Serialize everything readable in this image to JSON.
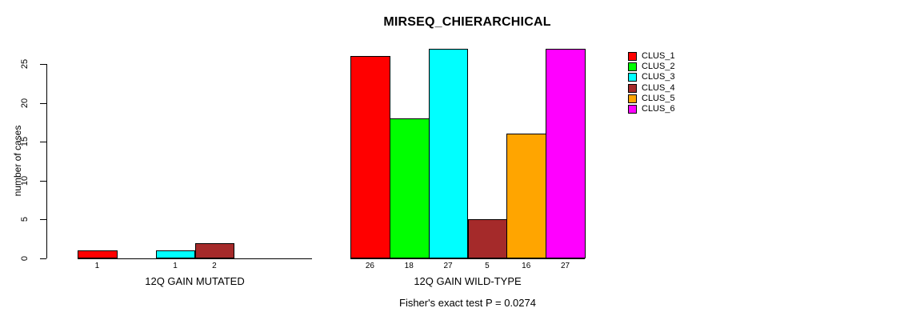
{
  "chart_data": {
    "type": "bar",
    "title": "MIRSEQ_CHIERARCHICAL",
    "subtitle": "Fisher's exact test P = 0.0274",
    "ylabel": "number of cases",
    "xlabel": "",
    "ylim": [
      0,
      27.5
    ],
    "yticks": [
      0,
      5,
      10,
      15,
      20,
      25
    ],
    "grid": false,
    "legend_position": "top-right",
    "categories": [
      "12Q GAIN MUTATED",
      "12Q GAIN WILD-TYPE"
    ],
    "series": [
      {
        "name": "CLUS_1",
        "color": "#FF0000",
        "values": [
          1,
          26
        ]
      },
      {
        "name": "CLUS_2",
        "color": "#00FF00",
        "values": [
          0,
          18
        ]
      },
      {
        "name": "CLUS_3",
        "color": "#00FFFF",
        "values": [
          1,
          27
        ]
      },
      {
        "name": "CLUS_4",
        "color": "#A52A2A",
        "values": [
          2,
          5
        ]
      },
      {
        "name": "CLUS_5",
        "color": "#FFA500",
        "values": [
          0,
          16
        ]
      },
      {
        "name": "CLUS_6",
        "color": "#FF00FF",
        "values": [
          0,
          27
        ]
      }
    ],
    "bar_labels_note": "numeric value printed under each non-zero bar",
    "axis_color": "#000000",
    "background_color": "#FFFFFF"
  }
}
